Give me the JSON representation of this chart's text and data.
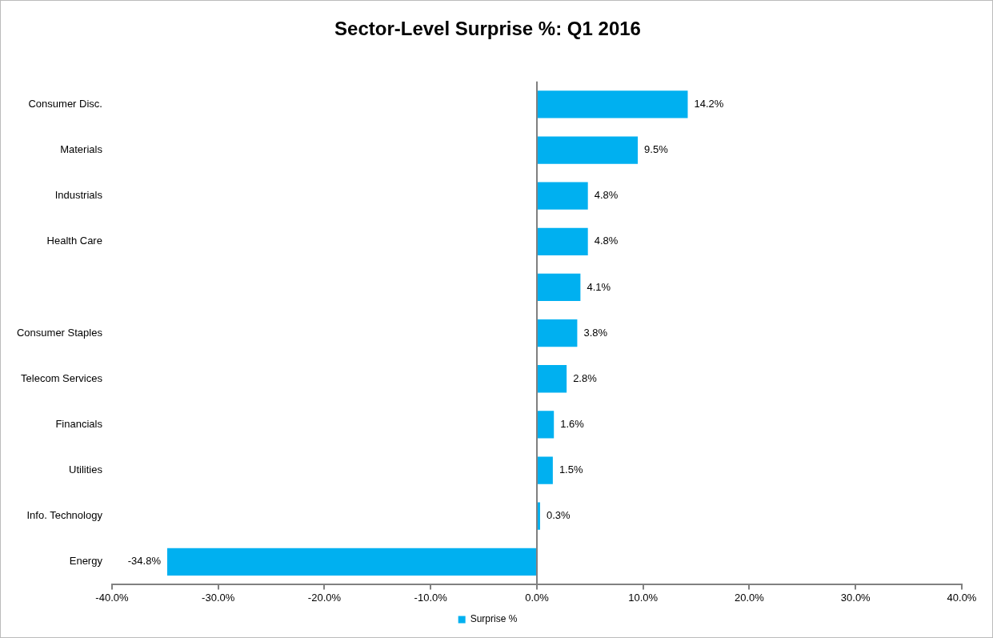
{
  "chart_data": {
    "type": "bar",
    "orientation": "horizontal",
    "title": "Sector-Level Surprise %: Q1 2016",
    "categories": [
      "Consumer Disc.",
      "Materials",
      "Industrials",
      "Health Care",
      null,
      "Consumer Staples",
      "Telecom Services",
      "Financials",
      "Utilities",
      "Info. Technology",
      "Energy"
    ],
    "series": [
      {
        "name": "Surprise %",
        "color": "#00b0f0",
        "values": [
          14.2,
          9.5,
          4.8,
          4.8,
          4.1,
          3.8,
          2.8,
          1.6,
          1.5,
          0.3,
          -34.8
        ],
        "value_labels": [
          "14.2%",
          "9.5%",
          "4.8%",
          "4.8%",
          "4.1%",
          "3.8%",
          "2.8%",
          "1.6%",
          "1.5%",
          "0.3%",
          "-34.8%"
        ]
      }
    ],
    "xlim": [
      -40,
      40
    ],
    "xticks": [
      {
        "value": -40,
        "label": "-40.0%"
      },
      {
        "value": -30,
        "label": "-30.0%"
      },
      {
        "value": -20,
        "label": "-20.0%"
      },
      {
        "value": -10,
        "label": "-10.0%"
      },
      {
        "value": 0,
        "label": "0.0%"
      },
      {
        "value": 10,
        "label": "10.0%"
      },
      {
        "value": 20,
        "label": "20.0%"
      },
      {
        "value": 30,
        "label": "30.0%"
      },
      {
        "value": 40,
        "label": "40.0%"
      }
    ],
    "legend": "bottom"
  }
}
